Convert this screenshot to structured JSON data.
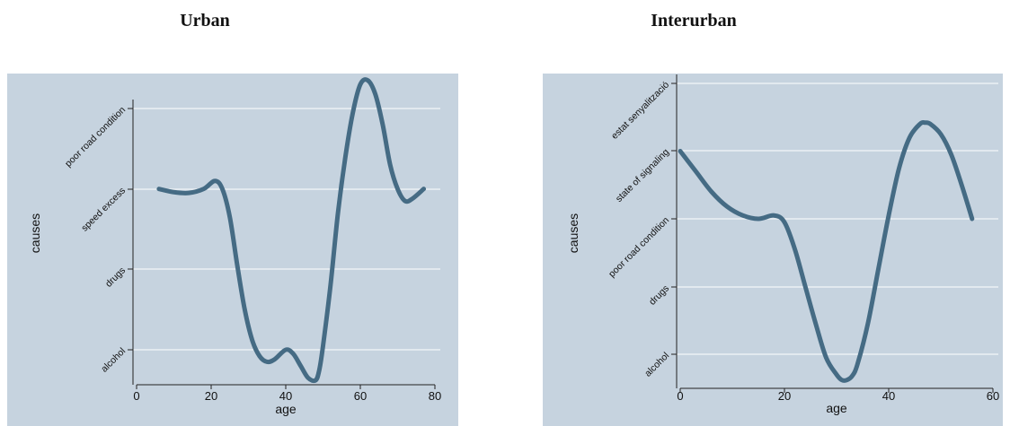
{
  "chart_data": [
    {
      "type": "line",
      "title": "Urban",
      "xlabel": "age",
      "ylabel": "causes",
      "xlim": [
        0,
        80
      ],
      "xticks": [
        0,
        20,
        40,
        60,
        80
      ],
      "categories": [
        "alcohol",
        "drugs",
        "speed excess",
        "poor road condition"
      ],
      "grid": true,
      "series": [
        {
          "x": [
            6,
            10,
            14,
            18,
            21,
            23,
            25,
            27,
            29,
            31,
            33,
            35,
            37,
            40,
            42,
            44,
            46,
            48,
            49,
            50,
            52,
            54,
            56,
            58,
            60,
            62,
            64,
            66,
            68,
            70,
            72,
            74,
            77
          ],
          "y": [
            2.0,
            1.96,
            1.95,
            2.0,
            2.1,
            2.0,
            1.65,
            1.05,
            0.5,
            0.12,
            -0.08,
            -0.15,
            -0.12,
            0.0,
            -0.05,
            -0.2,
            -0.35,
            -0.38,
            -0.25,
            0.05,
            0.8,
            1.7,
            2.4,
            2.95,
            3.3,
            3.35,
            3.18,
            2.8,
            2.3,
            2.0,
            1.85,
            1.88,
            2.0
          ]
        }
      ]
    },
    {
      "type": "line",
      "title": "Interurban",
      "xlabel": "age",
      "ylabel": "causes",
      "xlim": [
        0,
        60
      ],
      "xticks": [
        0,
        20,
        40,
        60
      ],
      "categories": [
        "alcohol",
        "drugs",
        "poor road condition",
        "state of signaling",
        "estat senyalització"
      ],
      "grid": true,
      "series": [
        {
          "x": [
            0,
            3,
            6,
            9,
            12,
            15,
            18,
            20,
            22,
            24,
            26,
            28,
            30,
            31,
            32,
            33,
            34,
            36,
            38,
            40,
            42,
            44,
            46,
            47,
            48,
            50,
            52,
            54,
            56
          ],
          "y": [
            3.0,
            2.7,
            2.4,
            2.18,
            2.05,
            2.0,
            2.05,
            1.95,
            1.55,
            1.0,
            0.45,
            -0.05,
            -0.3,
            -0.38,
            -0.38,
            -0.32,
            -0.15,
            0.45,
            1.25,
            2.05,
            2.75,
            3.2,
            3.4,
            3.42,
            3.4,
            3.25,
            2.95,
            2.5,
            2.0
          ]
        }
      ]
    }
  ],
  "colors": {
    "plot_background": "#c6d3df",
    "line": "#456b84",
    "grid": "#ffffff"
  }
}
